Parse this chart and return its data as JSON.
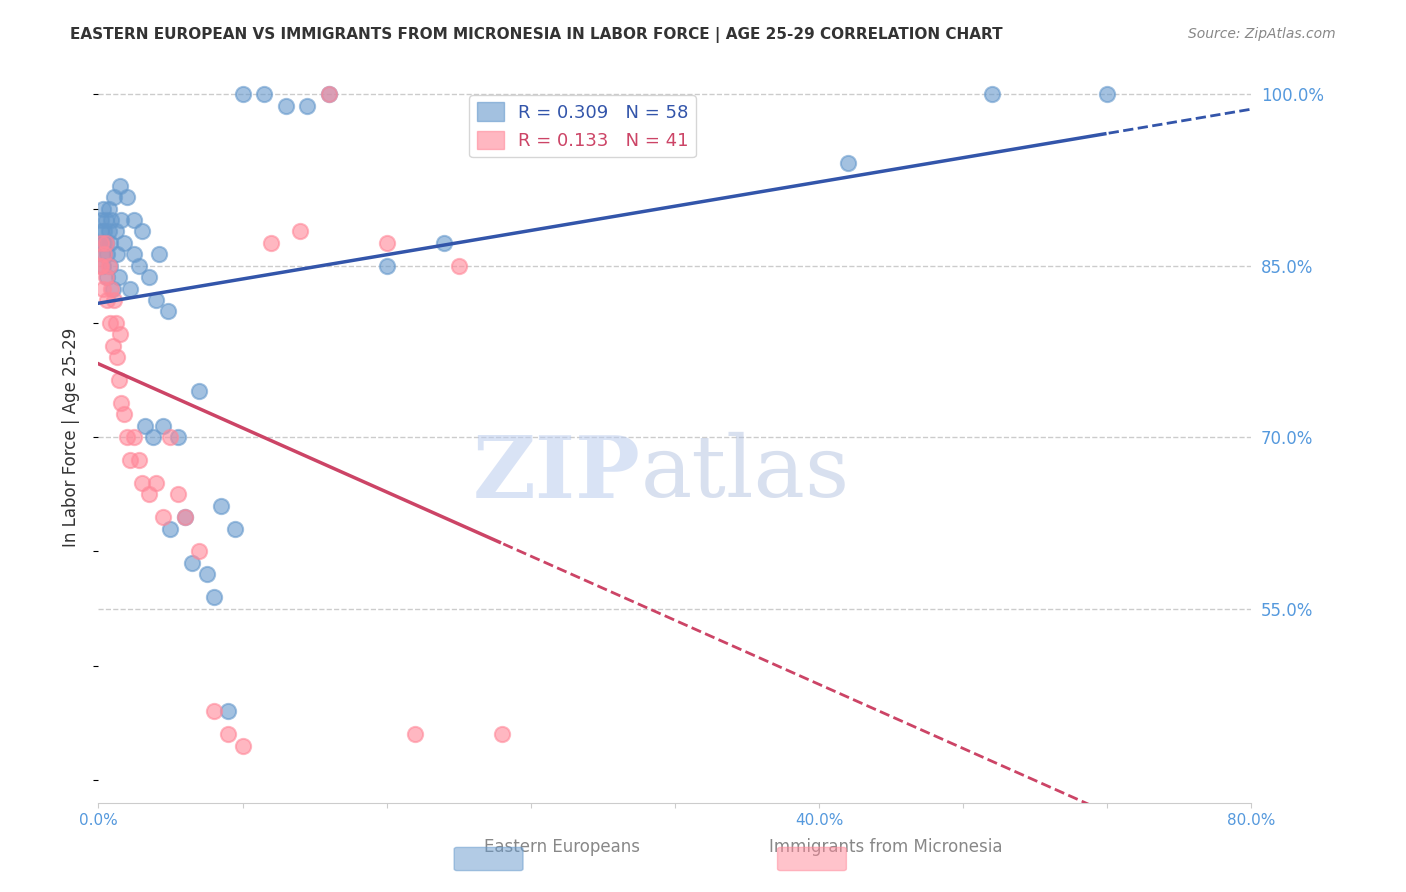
{
  "title": "EASTERN EUROPEAN VS IMMIGRANTS FROM MICRONESIA IN LABOR FORCE | AGE 25-29 CORRELATION CHART",
  "source": "Source: ZipAtlas.com",
  "ylabel": "In Labor Force | Age 25-29",
  "watermark_zip": "ZIP",
  "watermark_atlas": "atlas",
  "legend_label1": "Eastern Europeans",
  "legend_label2": "Immigrants from Micronesia",
  "r1": 0.309,
  "n1": 58,
  "r2": 0.133,
  "n2": 41,
  "blue_color": "#6699CC",
  "pink_color": "#FF8899",
  "blue_line_color": "#3355AA",
  "pink_line_color": "#CC4466",
  "axis_label_color": "#5599DD",
  "xmin": 0.0,
  "xmax": 0.8,
  "ymin": 0.38,
  "ymax": 1.02,
  "ytick_vals": [
    0.55,
    0.7,
    0.85,
    1.0
  ],
  "ytick_labels": [
    "55.0%",
    "70.0%",
    "85.0%",
    "100.0%"
  ],
  "xtick_vals": [
    0.0,
    0.1,
    0.2,
    0.3,
    0.4,
    0.5,
    0.6,
    0.7,
    0.8
  ],
  "xtick_labels": [
    "0.0%",
    "",
    "",
    "",
    "",
    "40.0%",
    "",
    "",
    "80.0%"
  ],
  "blue_x": [
    0.001,
    0.002,
    0.002,
    0.003,
    0.003,
    0.003,
    0.004,
    0.004,
    0.005,
    0.005,
    0.006,
    0.006,
    0.007,
    0.007,
    0.008,
    0.008,
    0.009,
    0.01,
    0.011,
    0.012,
    0.013,
    0.014,
    0.015,
    0.016,
    0.018,
    0.02,
    0.022,
    0.025,
    0.025,
    0.028,
    0.03,
    0.032,
    0.035,
    0.038,
    0.04,
    0.042,
    0.045,
    0.048,
    0.05,
    0.055,
    0.06,
    0.065,
    0.07,
    0.075,
    0.08,
    0.085,
    0.09,
    0.095,
    0.1,
    0.115,
    0.13,
    0.145,
    0.16,
    0.2,
    0.24,
    0.52,
    0.62,
    0.7
  ],
  "blue_y": [
    0.87,
    0.88,
    0.89,
    0.85,
    0.87,
    0.9,
    0.86,
    0.88,
    0.87,
    0.89,
    0.84,
    0.86,
    0.88,
    0.9,
    0.85,
    0.87,
    0.89,
    0.83,
    0.91,
    0.88,
    0.86,
    0.84,
    0.92,
    0.89,
    0.87,
    0.91,
    0.83,
    0.89,
    0.86,
    0.85,
    0.88,
    0.71,
    0.84,
    0.7,
    0.82,
    0.86,
    0.71,
    0.81,
    0.62,
    0.7,
    0.63,
    0.59,
    0.74,
    0.58,
    0.56,
    0.64,
    0.46,
    0.62,
    1.0,
    1.0,
    0.99,
    0.99,
    1.0,
    0.85,
    0.87,
    0.94,
    1.0,
    1.0
  ],
  "pink_x": [
    0.001,
    0.002,
    0.002,
    0.003,
    0.004,
    0.005,
    0.005,
    0.006,
    0.007,
    0.008,
    0.009,
    0.01,
    0.011,
    0.012,
    0.013,
    0.014,
    0.015,
    0.016,
    0.018,
    0.02,
    0.022,
    0.025,
    0.028,
    0.03,
    0.035,
    0.04,
    0.045,
    0.05,
    0.055,
    0.06,
    0.07,
    0.08,
    0.09,
    0.1,
    0.12,
    0.14,
    0.16,
    0.2,
    0.22,
    0.25,
    0.28
  ],
  "pink_y": [
    0.85,
    0.87,
    0.85,
    0.83,
    0.86,
    0.84,
    0.87,
    0.82,
    0.85,
    0.8,
    0.83,
    0.78,
    0.82,
    0.8,
    0.77,
    0.75,
    0.79,
    0.73,
    0.72,
    0.7,
    0.68,
    0.7,
    0.68,
    0.66,
    0.65,
    0.66,
    0.63,
    0.7,
    0.65,
    0.63,
    0.6,
    0.46,
    0.44,
    0.43,
    0.87,
    0.88,
    1.0,
    0.87,
    0.44,
    0.85,
    0.44
  ]
}
